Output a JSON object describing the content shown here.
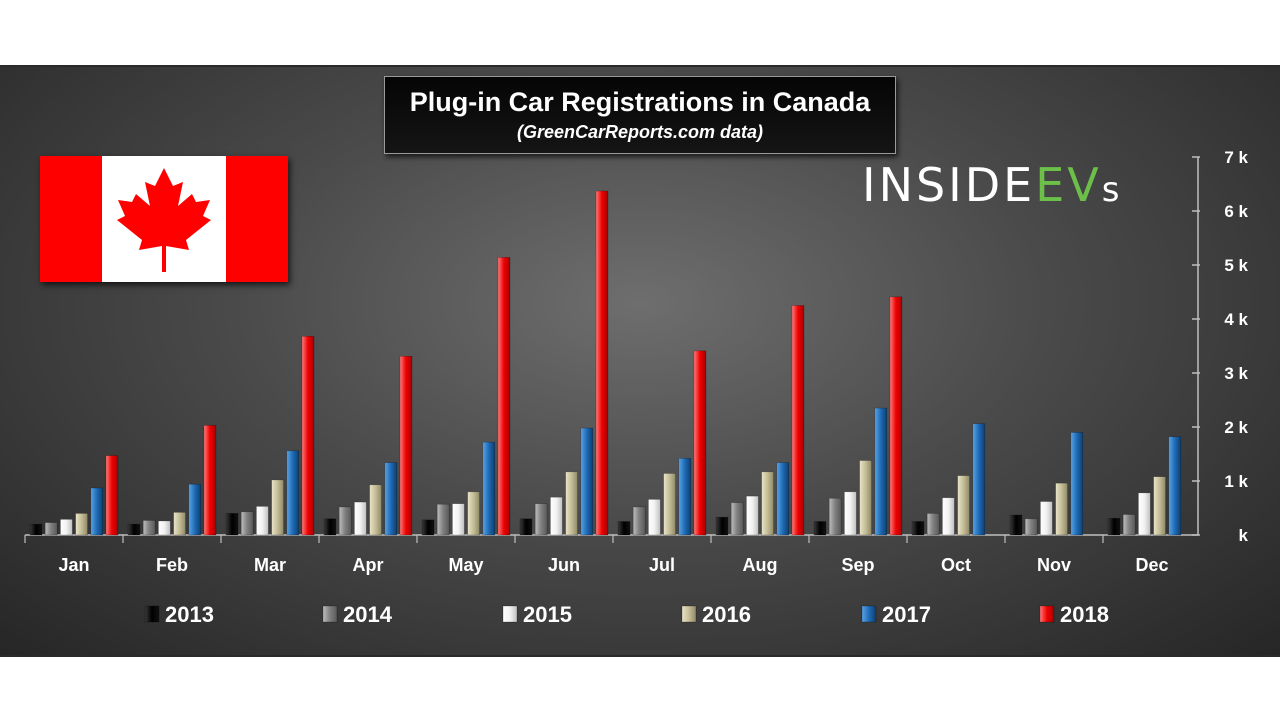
{
  "chart_data": {
    "type": "bar",
    "title": "Plug-in Car Registrations in Canada",
    "subtitle": "(GreenCarReports.com data)",
    "categories": [
      "Jan",
      "Feb",
      "Mar",
      "Apr",
      "May",
      "Jun",
      "Jul",
      "Aug",
      "Sep",
      "Oct",
      "Nov",
      "Dec"
    ],
    "series": [
      {
        "name": "2013",
        "color": "#000000",
        "values": [
          200,
          200,
          400,
          300,
          280,
          300,
          250,
          330,
          250,
          250,
          370,
          310
        ]
      },
      {
        "name": "2014",
        "color": "#7f7f7f",
        "values": [
          230,
          270,
          430,
          520,
          570,
          580,
          520,
          600,
          680,
          400,
          300,
          380
        ]
      },
      {
        "name": "2015",
        "color": "#f2f2f2",
        "values": [
          290,
          260,
          530,
          610,
          580,
          700,
          660,
          720,
          800,
          690,
          620,
          780
        ]
      },
      {
        "name": "2016",
        "color": "#c4bd97",
        "values": [
          400,
          420,
          1020,
          930,
          800,
          1170,
          1140,
          1170,
          1380,
          1100,
          960,
          1080
        ]
      },
      {
        "name": "2017",
        "color": "#1f6bb5",
        "values": [
          870,
          940,
          1560,
          1340,
          1720,
          1980,
          1420,
          1340,
          2350,
          2060,
          1900,
          1820
        ]
      },
      {
        "name": "2018",
        "color": "#ee0000",
        "values": [
          1470,
          2030,
          3680,
          3310,
          5140,
          6370,
          3410,
          4250,
          4410,
          null,
          null,
          null
        ]
      }
    ],
    "y_ticks": [
      "7 k",
      "6 k",
      "5 k",
      "4 k",
      "3 k",
      "2 k",
      "1 k",
      "k"
    ],
    "ylim": [
      0,
      7000
    ],
    "grid": false,
    "legend_position": "bottom"
  },
  "logo": {
    "part1": "INSIDE",
    "part2": "EV",
    "part3": "s"
  },
  "colors": {
    "flag_red": "#ff0000",
    "logo_green": "#6cc04a"
  }
}
